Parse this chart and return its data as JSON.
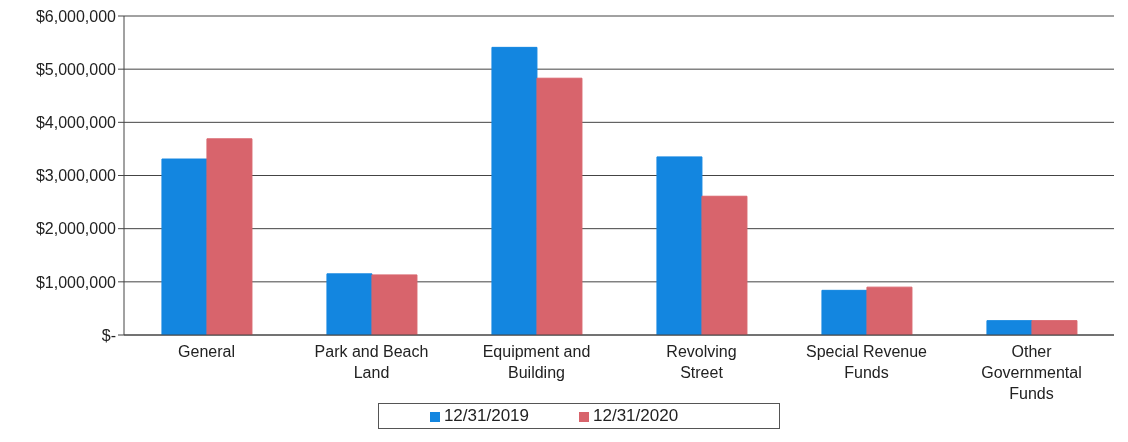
{
  "chart_data": {
    "type": "bar",
    "categories": [
      "General",
      "Park and Beach Land",
      "Equipment and Building",
      "Revolving Street",
      "Special Revenue Funds",
      "Other Governmental Funds"
    ],
    "series": [
      {
        "name": "12/31/2019",
        "color": "#1386e0",
        "values": [
          3310000,
          1150000,
          5410000,
          3350000,
          840000,
          270000
        ]
      },
      {
        "name": "12/31/2020",
        "color": "#d8646c",
        "values": [
          3690000,
          1130000,
          4830000,
          2610000,
          900000,
          270000
        ]
      }
    ],
    "ylim": [
      0,
      6000000
    ],
    "yticks": [
      {
        "value": 0,
        "label": "$-"
      },
      {
        "value": 1000000,
        "label": "$1,000,000"
      },
      {
        "value": 2000000,
        "label": "$2,000,000"
      },
      {
        "value": 3000000,
        "label": "$3,000,000"
      },
      {
        "value": 4000000,
        "label": "$4,000,000"
      },
      {
        "value": 5000000,
        "label": "$5,000,000"
      },
      {
        "value": 6000000,
        "label": "$6,000,000"
      }
    ],
    "grid": "y",
    "legend": "bottom"
  }
}
